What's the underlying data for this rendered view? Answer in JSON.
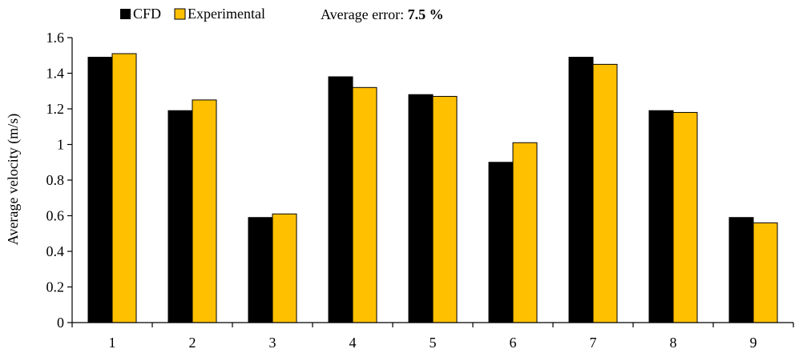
{
  "chart_data": {
    "type": "bar",
    "title": "",
    "xlabel": "",
    "ylabel": "Average velocity (m/s)",
    "categories": [
      "1",
      "2",
      "3",
      "4",
      "5",
      "6",
      "7",
      "8",
      "9"
    ],
    "series": [
      {
        "name": "CFD",
        "color": "#000000",
        "values": [
          1.49,
          1.19,
          0.59,
          1.38,
          1.28,
          0.9,
          1.49,
          1.19,
          0.59
        ]
      },
      {
        "name": "Experimental",
        "color": "#FFC000",
        "values": [
          1.51,
          1.25,
          0.61,
          1.32,
          1.27,
          1.01,
          1.45,
          1.18,
          0.56
        ]
      }
    ],
    "ylim": [
      0,
      1.6
    ],
    "yticks": [
      "0",
      "0.2",
      "0.4",
      "0.6",
      "0.8",
      "1",
      "1.2",
      "1.4",
      "1.6"
    ],
    "grid": false,
    "legend_position": "top-left",
    "annotation": {
      "prefix": "Average error:",
      "value": "7.5 %"
    }
  }
}
